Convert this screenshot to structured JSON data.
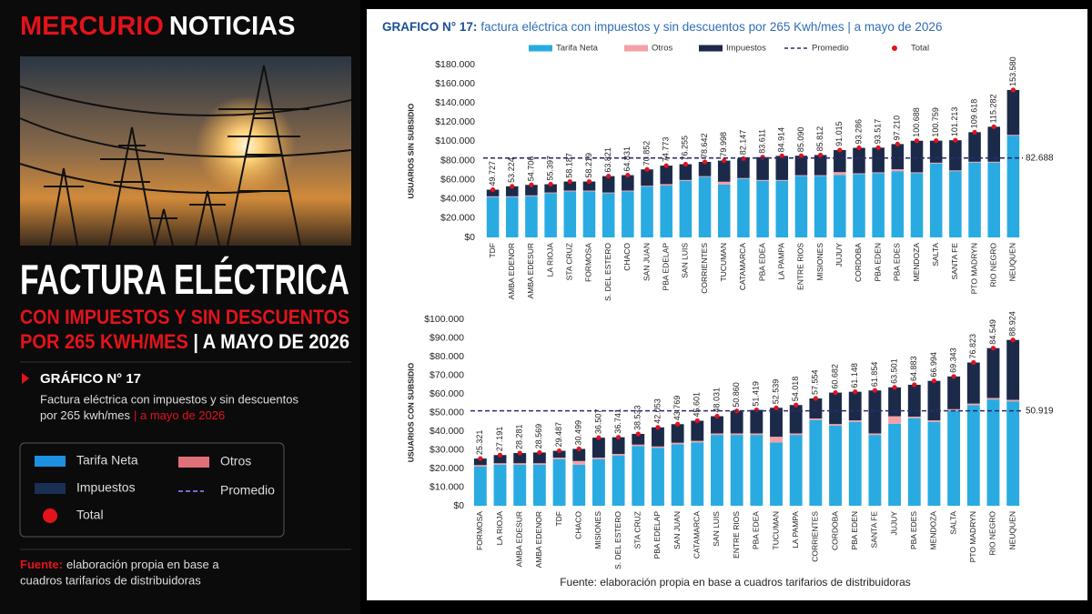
{
  "header": {
    "brand_1": "MERCURIO",
    "brand_2": "NOTICIAS"
  },
  "sidebar": {
    "title": "FACTURA ELÉCTRICA",
    "subtitle_1": "CON IMPUESTOS Y SIN DESCUENTOS",
    "subtitle_2a": "POR 265 KWH/MES",
    "subtitle_2b": "| A MAYO DE 2026",
    "chart_label": "GRÁFICO N° 17",
    "description_1": "Factura eléctrica con impuestos y sin descuentos",
    "description_2a": "por 265 kwh/mes",
    "description_2b": "| a mayo de 2026",
    "legend": [
      "Tarifa Neta",
      "Otros",
      "Impuestos",
      "Promedio",
      "Total"
    ],
    "source_label": "Fuente:",
    "source_1": "elaboración propia en base a",
    "source_2": "cuadros tarifarios de distribuidoras"
  },
  "panel": {
    "title_bold": "GRAFICO N° 17:",
    "title_rest": "factura eléctrica con impuestos y sin descuentos por 265 Kwh/mes | a mayo de 2026",
    "source": "Fuente: elaboración propia en base a cuadros tarifarios de distribuidoras"
  },
  "chart_data": [
    {
      "type": "bar",
      "stacked": true,
      "ylabel": "USUARIOS SIN SUBSIDIO",
      "categories": [
        "TDF",
        "AMBA EDENOR",
        "AMBA EDESUR",
        "LA RIOJA",
        "STA CRUZ",
        "FORMOSA",
        "S. DEL ESTERO",
        "CHACO",
        "SAN JUAN",
        "PBA EDELAP",
        "SAN LUIS",
        "CORRIENTES",
        "TUCUMAN",
        "CATAMARCA",
        "PBA EDEA",
        "LA PAMPA",
        "ENTRE RIOS",
        "MISIONES",
        "JUJUY",
        "CORDOBA",
        "PBA EDEN",
        "PBA EDES",
        "MENDOZA",
        "SALTA",
        "SANTA FE",
        "PTO MADRYN",
        "RIO NEGRO",
        "NEUQUEN"
      ],
      "series": [
        {
          "name": "Tarifa Neta",
          "color": "#29abe2",
          "values": [
            42000,
            42000,
            43000,
            46000,
            48000,
            48000,
            46000,
            48000,
            53000,
            54000,
            59000,
            63000,
            55000,
            61000,
            59000,
            59000,
            64000,
            64000,
            65000,
            66000,
            67000,
            69000,
            67000,
            77000,
            69000,
            78000,
            78000,
            106000
          ]
        },
        {
          "name": "Otros",
          "color": "#f4a0a6",
          "values": [
            800,
            800,
            800,
            800,
            800,
            800,
            800,
            800,
            800,
            1500,
            800,
            800,
            3000,
            800,
            800,
            800,
            800,
            800,
            3000,
            800,
            800,
            2000,
            800,
            800,
            800,
            800,
            800,
            800
          ]
        },
        {
          "name": "Impuestos",
          "color": "#1c2a4a",
          "values": [
            6927,
            10424,
            10906,
            8597,
            9387,
            9419,
            17021,
            16031,
            17052,
            19273,
            16455,
            14842,
            21998,
            20347,
            23811,
            25114,
            20290,
            21012,
            23015,
            26486,
            25717,
            26210,
            32888,
            22959,
            31413,
            30818,
            36482,
            46780
          ]
        },
        {
          "name": "Total",
          "color": "#e3131b",
          "marker": "dot",
          "values": [
            49727,
            53224,
            54706,
            55397,
            58187,
            58219,
            63821,
            64831,
            70852,
            74773,
            76255,
            78642,
            79998,
            82147,
            83611,
            84914,
            85090,
            85812,
            91015,
            93286,
            93517,
            97210,
            100688,
            100759,
            101213,
            109618,
            115282,
            153580
          ],
          "value_labels": [
            "49.727",
            "53.224",
            "54.706",
            "55.397",
            "58.187",
            "58.219",
            "63.821",
            "64.831",
            "70.852",
            "74.773",
            "76.255",
            "78.642",
            "79.998",
            "82.147",
            "83.611",
            "84.914",
            "85.090",
            "85.812",
            "91.015",
            "93.286",
            "93.517",
            "97.210",
            "100.688",
            "100.759",
            "101.213",
            "109.618",
            "115.282",
            "153.580"
          ]
        }
      ],
      "average": {
        "name": "Promedio",
        "value": 82688,
        "value_label": "82.688",
        "color": "#2e2a6b",
        "style": "dashed"
      },
      "ylim": [
        0,
        180000
      ],
      "yticks": [
        {
          "value": 0,
          "label": "$0"
        },
        {
          "value": 20000,
          "label": "$20.000"
        },
        {
          "value": 40000,
          "label": "$40.000"
        },
        {
          "value": 60000,
          "label": "$60.000"
        },
        {
          "value": 80000,
          "label": "$80.000"
        },
        {
          "value": 100000,
          "label": "$100.000"
        },
        {
          "value": 120000,
          "label": "$120.000"
        },
        {
          "value": 140000,
          "label": "$140.000"
        },
        {
          "value": 160000,
          "label": "$160.000"
        },
        {
          "value": 180000,
          "label": "$180.000"
        }
      ]
    },
    {
      "type": "bar",
      "stacked": true,
      "ylabel": "USUARIOS CON SUBSIDIO",
      "categories": [
        "FORMOSA",
        "LA RIOJA",
        "AMBA EDESUR",
        "AMBA EDENOR",
        "TDF",
        "CHACO",
        "MISIONES",
        "S. DEL ESTERO",
        "STA CRUZ",
        "PBA EDELAP",
        "SAN JUAN",
        "CATAMARCA",
        "SAN LUIS",
        "ENTRE RIOS",
        "PBA EDEA",
        "TUCUMAN",
        "LA PAMPA",
        "CORRIENTES",
        "CORDOBA",
        "PBA EDEN",
        "SANTA FE",
        "JUJUY",
        "PBA EDES",
        "MENDOZA",
        "SALTA",
        "PTO MADRYN",
        "RIO NEGRO",
        "NEUQUEN"
      ],
      "series": [
        {
          "name": "Tarifa Neta",
          "color": "#29abe2",
          "values": [
            21000,
            22000,
            22000,
            22000,
            25000,
            22000,
            25000,
            27000,
            32000,
            31000,
            33000,
            34000,
            38000,
            38000,
            38000,
            34000,
            38000,
            46000,
            43000,
            45000,
            38000,
            44000,
            47000,
            45000,
            51000,
            54000,
            57000,
            56000
          ]
        },
        {
          "name": "Otros",
          "color": "#f4a0a6",
          "values": [
            800,
            800,
            800,
            800,
            800,
            2000,
            800,
            800,
            800,
            800,
            800,
            800,
            800,
            800,
            800,
            3000,
            800,
            800,
            800,
            800,
            800,
            4000,
            800,
            800,
            800,
            800,
            800,
            800
          ]
        },
        {
          "name": "Impuestos",
          "color": "#1c2a4a",
          "values": [
            3521,
            4391,
            5481,
            5769,
            3687,
            6499,
            10707,
            8941,
            5733,
            10253,
            9969,
            10801,
            9231,
            12060,
            12619,
            15539,
            15218,
            10754,
            16882,
            15348,
            23054,
            15501,
            17083,
            21194,
            17543,
            22023,
            26749,
            32124
          ]
        },
        {
          "name": "Total",
          "color": "#e3131b",
          "marker": "dot",
          "values": [
            25321,
            27191,
            28281,
            28569,
            29487,
            30499,
            36507,
            36741,
            38533,
            42053,
            43769,
            45601,
            48031,
            50860,
            51419,
            52539,
            54018,
            57554,
            60682,
            61148,
            61854,
            63501,
            64883,
            66994,
            69343,
            76823,
            84549,
            88924
          ],
          "value_labels": [
            "25.321",
            "27.191",
            "28.281",
            "28.569",
            "29.487",
            "30.499",
            "36.507",
            "36.741",
            "38.533",
            "42.053",
            "43.769",
            "45.601",
            "48.031",
            "50.860",
            "51.419",
            "52.539",
            "54.018",
            "57.554",
            "60.682",
            "61.148",
            "61.854",
            "63.501",
            "64.883",
            "66.994",
            "69.343",
            "76.823",
            "84.549",
            "88.924"
          ]
        }
      ],
      "average": {
        "name": "Promedio",
        "value": 50919,
        "value_label": "50.919",
        "color": "#2e2a6b",
        "style": "dashed"
      },
      "ylim": [
        0,
        100000
      ],
      "yticks": [
        {
          "value": 0,
          "label": "$0"
        },
        {
          "value": 10000,
          "label": "$10.000"
        },
        {
          "value": 20000,
          "label": "$20.000"
        },
        {
          "value": 30000,
          "label": "$30.000"
        },
        {
          "value": 40000,
          "label": "$40.000"
        },
        {
          "value": 50000,
          "label": "$50.000"
        },
        {
          "value": 60000,
          "label": "$60.000"
        },
        {
          "value": 70000,
          "label": "$70.000"
        },
        {
          "value": 80000,
          "label": "$80.000"
        },
        {
          "value": 90000,
          "label": "$90.000"
        },
        {
          "value": 100000,
          "label": "$100.000"
        }
      ]
    }
  ]
}
